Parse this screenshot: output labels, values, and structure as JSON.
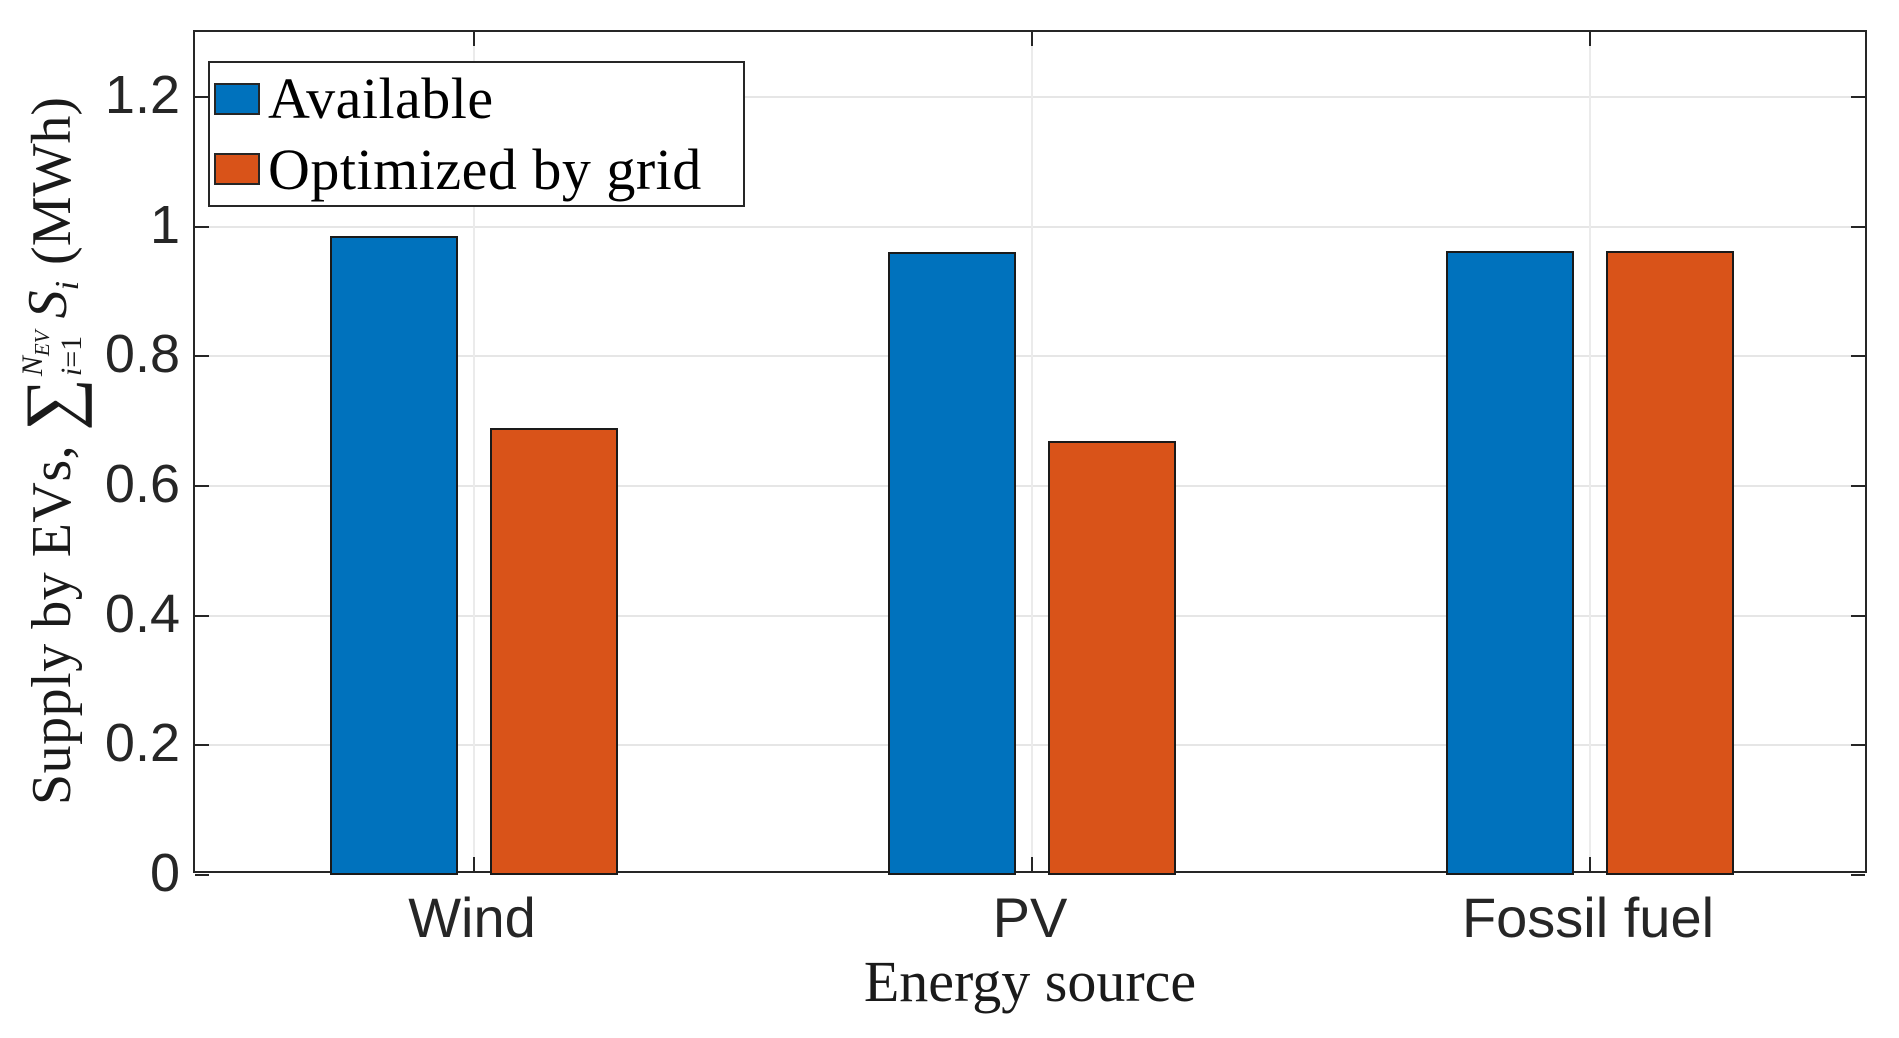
{
  "chart_data": {
    "type": "bar",
    "title": "",
    "categories": [
      "Wind",
      "PV",
      "Fossil fuel"
    ],
    "series": [
      {
        "name": "Available",
        "color": "#0072BD",
        "values": [
          0.985,
          0.96,
          0.962
        ]
      },
      {
        "name": "Optimized by grid",
        "color": "#D95319",
        "values": [
          0.69,
          0.67,
          0.962
        ]
      }
    ],
    "xlabel": "Energy source",
    "ylabel": "Supply by EVs, sum_{i=1}^{N_EV} S_i (MWh)",
    "ylim": [
      0,
      1.3
    ],
    "yticks": {
      "values": [
        0,
        0.2,
        0.4,
        0.6,
        0.8,
        1,
        1.2
      ],
      "labels": [
        "0",
        "0.2",
        "0.4",
        "0.6",
        "0.8",
        "1",
        "1.2"
      ]
    },
    "grid": true,
    "legend_position": "top-left",
    "bar_edge_color": "#1a1a1a",
    "grid_color": "#e6e6e6",
    "axis_color": "#262626"
  },
  "axes": {
    "x_label": "Energy source",
    "y_label_parts": {
      "prefix": "Supply by EVs,",
      "sigma": "∑",
      "sum_upper_var": "N",
      "sum_upper_sub": "EV",
      "sum_lower_var": "i",
      "sum_lower_eq": "=1",
      "term_main": "S",
      "term_sub": "i",
      "unit": "(MWh)"
    }
  }
}
